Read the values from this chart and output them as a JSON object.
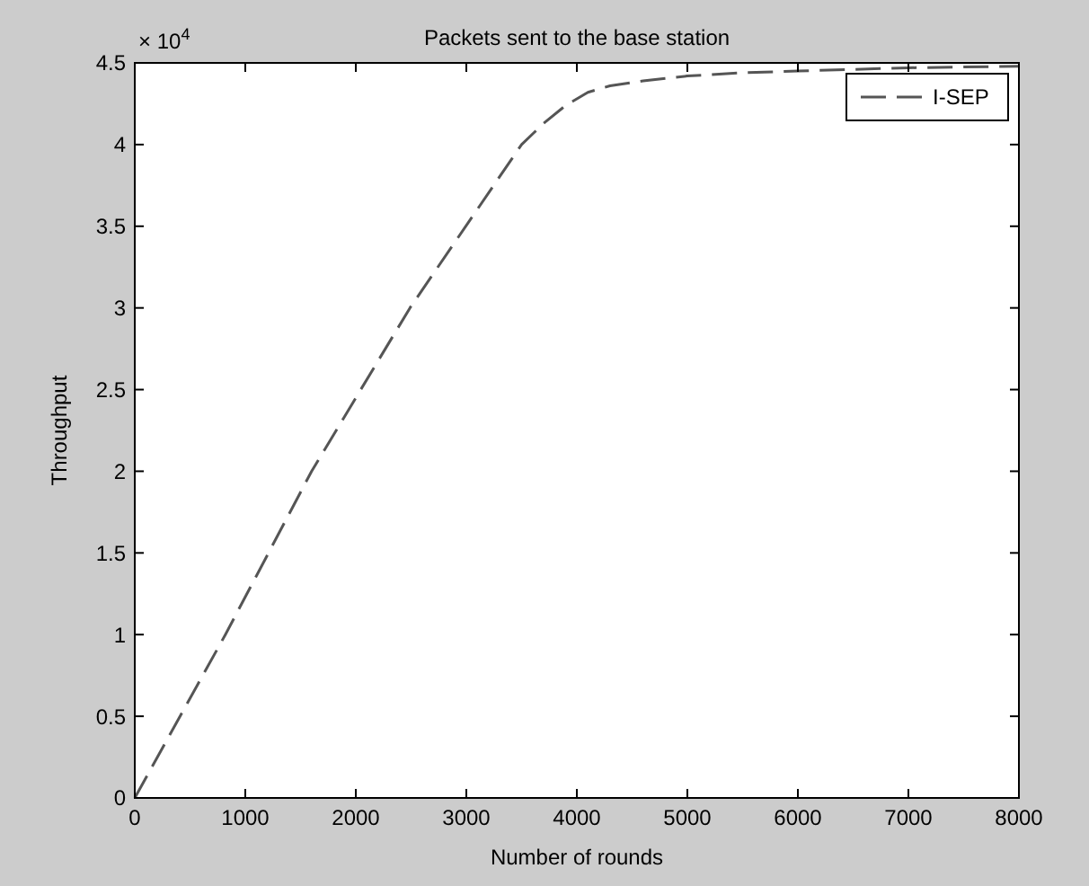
{
  "chart_data": {
    "type": "line",
    "title": "Packets sent to the base station",
    "xlabel": "Number of rounds",
    "ylabel": "Throughput",
    "annotations": [
      "× 10$^{4}$"
    ],
    "xlim": [
      0,
      8000
    ],
    "xticks": [
      0,
      1000,
      2000,
      3000,
      4000,
      5000,
      6000,
      7000,
      8000
    ],
    "ylim": [
      0,
      4.5
    ],
    "yticks": [
      0,
      0.5,
      1,
      1.5,
      2,
      2.5,
      3,
      3.5,
      4,
      4.5
    ],
    "legend": "top right",
    "line_style": "dashed",
    "grid": false,
    "x": [
      0,
      820,
      1600,
      2490,
      3500,
      3700,
      3900,
      4100,
      4300,
      4600,
      5000,
      5500,
      6000,
      7000,
      8000
    ],
    "series": [
      {
        "name": "I-SEP",
        "color": "#555555",
        "values": [
          0,
          1,
          2,
          3,
          4,
          4.13,
          4.24,
          4.32,
          4.36,
          4.39,
          4.42,
          4.44,
          4.45,
          4.47,
          4.48
        ]
      }
    ]
  }
}
